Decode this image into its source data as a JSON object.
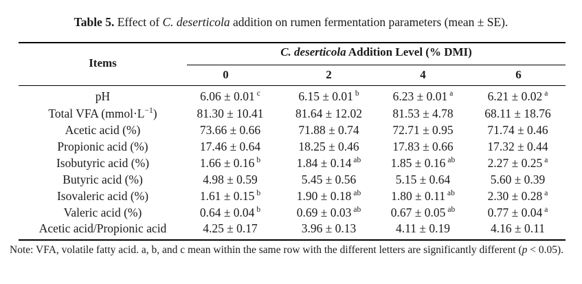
{
  "caption": {
    "label": "Table 5.",
    "text_before": " Effect of ",
    "species": "C. deserticola",
    "text_after": " addition on rumen fermentation parameters (mean ± SE)."
  },
  "header": {
    "items": "Items",
    "group_species": "C. deserticola",
    "group_text": " Addition Level (% DMI)",
    "levels": [
      "0",
      "2",
      "4",
      "6"
    ]
  },
  "rows": [
    {
      "item": "pH",
      "values": [
        {
          "v": "6.06 ± 0.01",
          "s": "c"
        },
        {
          "v": "6.15 ± 0.01",
          "s": "b"
        },
        {
          "v": "6.23 ± 0.01",
          "s": "a"
        },
        {
          "v": "6.21 ± 0.02",
          "s": "a"
        }
      ]
    },
    {
      "item": "Total VFA (mmol·L",
      "unit_exp": "−1",
      "item_suffix": ")",
      "values": [
        {
          "v": "81.30 ± 10.41",
          "s": ""
        },
        {
          "v": "81.64 ± 12.02",
          "s": ""
        },
        {
          "v": "81.53 ± 4.78",
          "s": ""
        },
        {
          "v": "68.11 ± 18.76",
          "s": ""
        }
      ]
    },
    {
      "item": "Acetic acid (%)",
      "values": [
        {
          "v": "73.66 ± 0.66",
          "s": ""
        },
        {
          "v": "71.88 ± 0.74",
          "s": ""
        },
        {
          "v": "72.71 ± 0.95",
          "s": ""
        },
        {
          "v": "71.74 ± 0.46",
          "s": ""
        }
      ]
    },
    {
      "item": "Propionic acid (%)",
      "values": [
        {
          "v": "17.46 ± 0.64",
          "s": ""
        },
        {
          "v": "18.25 ± 0.46",
          "s": ""
        },
        {
          "v": "17.83 ± 0.66",
          "s": ""
        },
        {
          "v": "17.32 ± 0.44",
          "s": ""
        }
      ]
    },
    {
      "item": "Isobutyric acid (%)",
      "values": [
        {
          "v": "1.66 ± 0.16",
          "s": "b"
        },
        {
          "v": "1.84 ± 0.14",
          "s": "ab"
        },
        {
          "v": "1.85 ± 0.16",
          "s": "ab"
        },
        {
          "v": "2.27 ± 0.25",
          "s": "a"
        }
      ]
    },
    {
      "item": "Butyric acid (%)",
      "values": [
        {
          "v": "4.98 ± 0.59",
          "s": ""
        },
        {
          "v": "5.45 ± 0.56",
          "s": ""
        },
        {
          "v": "5.15 ± 0.64",
          "s": ""
        },
        {
          "v": "5.60 ± 0.39",
          "s": ""
        }
      ]
    },
    {
      "item": "Isovaleric acid (%)",
      "values": [
        {
          "v": "1.61 ± 0.15",
          "s": "b"
        },
        {
          "v": "1.90 ± 0.18",
          "s": "ab"
        },
        {
          "v": "1.80 ± 0.11",
          "s": "ab"
        },
        {
          "v": "2.30 ± 0.28",
          "s": "a"
        }
      ]
    },
    {
      "item": "Valeric acid (%)",
      "values": [
        {
          "v": "0.64 ± 0.04",
          "s": "b"
        },
        {
          "v": "0.69 ± 0.03",
          "s": "ab"
        },
        {
          "v": "0.67 ± 0.05",
          "s": "ab"
        },
        {
          "v": "0.77 ± 0.04",
          "s": "a"
        }
      ]
    },
    {
      "item": "Acetic acid/Propionic acid",
      "values": [
        {
          "v": "4.25 ± 0.17",
          "s": ""
        },
        {
          "v": "3.96 ± 0.13",
          "s": ""
        },
        {
          "v": "4.11 ± 0.19",
          "s": ""
        },
        {
          "v": "4.16 ± 0.11",
          "s": ""
        }
      ]
    }
  ],
  "note": {
    "text_before": "Note:  VFA, volatile fatty acid.  a, b, and c mean within the same row with the different letters are significantly different (",
    "p": "p",
    "text_after": " < 0.05)."
  }
}
